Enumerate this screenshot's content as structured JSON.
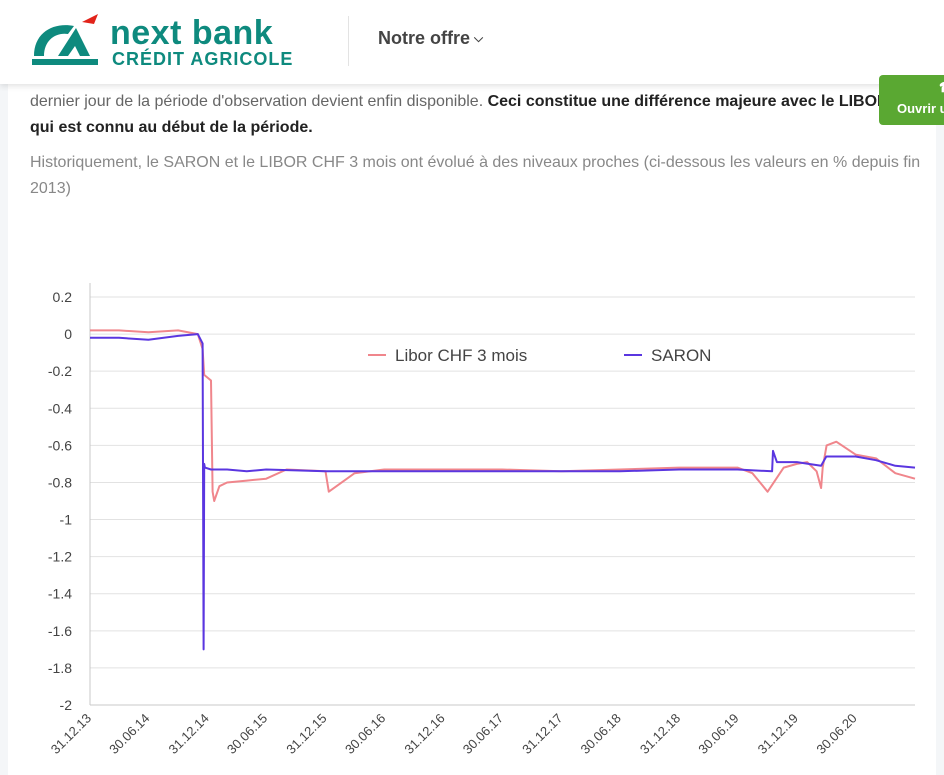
{
  "header": {
    "brand_line1": "next bank",
    "brand_line2": "CRÉDIT AGRICOLE",
    "nav_item": "Notre offre"
  },
  "article": {
    "para1_a": "dernier jour de la période d'observation devient enfin disponible. ",
    "para1_b": "Ceci constitue une différence majeure avec le LIBOR CHF qui est connu au début de la période.",
    "para2": "Historiquement, le SARON et le LIBOR CHF 3 mois ont évolué à des niveaux proches (ci-dessous les valeurs en % depuis fin 2013)"
  },
  "side_button": {
    "label": "Ouvrir u",
    "icon": "phone-icon"
  },
  "colors": {
    "brand": "#0e8a7e",
    "brand_red": "#e2231a",
    "libor": "#f0868c",
    "saron": "#5a36e0",
    "button": "#5aa832"
  },
  "chart_data": {
    "type": "line",
    "xlabel": "",
    "ylabel": "",
    "ylim": [
      -2,
      0.2
    ],
    "yticks": [
      "0.2",
      "0",
      "-0.2",
      "-0.4",
      "-0.6",
      "-0.8",
      "-1",
      "-1.2",
      "-1.4",
      "-1.6",
      "-1.8",
      "-2"
    ],
    "xticks": [
      "31.12.13",
      "30.06.14",
      "31.12.14",
      "30.06.15",
      "31.12.15",
      "30.06.16",
      "31.12.16",
      "30.06.17",
      "31.12.17",
      "30.06.18",
      "31.12.18",
      "30.06.19",
      "31.12.19",
      "30.06.20"
    ],
    "grid": "horizontal",
    "legend_position": "top-center",
    "series": [
      {
        "name": "Libor CHF 3 mois",
        "color": "#f0868c",
        "x": [
          "31.12.13",
          "31.03.14",
          "30.06.14",
          "30.09.14",
          "30.11.14",
          "15.12.14",
          "20.12.14",
          "10.01.15",
          "15.01.15",
          "20.01.15",
          "05.02.15",
          "01.03.15",
          "01.05.15",
          "30.06.15",
          "01.09.15",
          "31.12.15",
          "10.01.16",
          "30.03.16",
          "30.06.16",
          "31.12.16",
          "30.06.17",
          "31.12.17",
          "30.06.18",
          "31.12.18",
          "30.06.19",
          "15.08.19",
          "01.10.19",
          "20.11.19",
          "31.12.19",
          "01.02.20",
          "01.03.20",
          "15.03.20",
          "20.03.20",
          "01.04.20",
          "01.05.20",
          "30.06.20",
          "01.09.20",
          "31.10.20",
          "31.12.20"
        ],
        "values": [
          0.02,
          0.02,
          0.01,
          0.02,
          0.0,
          -0.08,
          -0.22,
          -0.25,
          -0.85,
          -0.9,
          -0.82,
          -0.8,
          -0.79,
          -0.78,
          -0.73,
          -0.74,
          -0.85,
          -0.75,
          -0.73,
          -0.73,
          -0.73,
          -0.74,
          -0.73,
          -0.72,
          -0.72,
          -0.75,
          -0.85,
          -0.72,
          -0.7,
          -0.69,
          -0.74,
          -0.83,
          -0.72,
          -0.6,
          -0.58,
          -0.65,
          -0.67,
          -0.75,
          -0.78
        ]
      },
      {
        "name": "SARON",
        "color": "#5a36e0",
        "x": [
          "31.12.13",
          "31.03.14",
          "30.06.14",
          "30.09.14",
          "30.11.14",
          "15.12.14",
          "18.12.14",
          "20.12.14",
          "22.12.14",
          "10.01.15",
          "01.03.15",
          "01.05.15",
          "30.06.15",
          "31.12.15",
          "30.06.16",
          "31.12.16",
          "30.06.17",
          "31.12.17",
          "30.06.18",
          "31.12.18",
          "30.06.19",
          "15.10.19",
          "18.10.19",
          "30.10.19",
          "31.12.19",
          "15.03.20",
          "31.03.20",
          "01.04.20",
          "30.06.20",
          "01.09.20",
          "31.10.20",
          "31.12.20"
        ],
        "values": [
          -0.02,
          -0.02,
          -0.03,
          -0.01,
          0.0,
          -0.05,
          -1.7,
          -0.7,
          -0.72,
          -0.73,
          -0.73,
          -0.74,
          -0.73,
          -0.74,
          -0.74,
          -0.74,
          -0.74,
          -0.74,
          -0.74,
          -0.73,
          -0.73,
          -0.74,
          -0.63,
          -0.69,
          -0.69,
          -0.71,
          -0.66,
          -0.66,
          -0.66,
          -0.68,
          -0.71,
          -0.72
        ]
      }
    ]
  }
}
